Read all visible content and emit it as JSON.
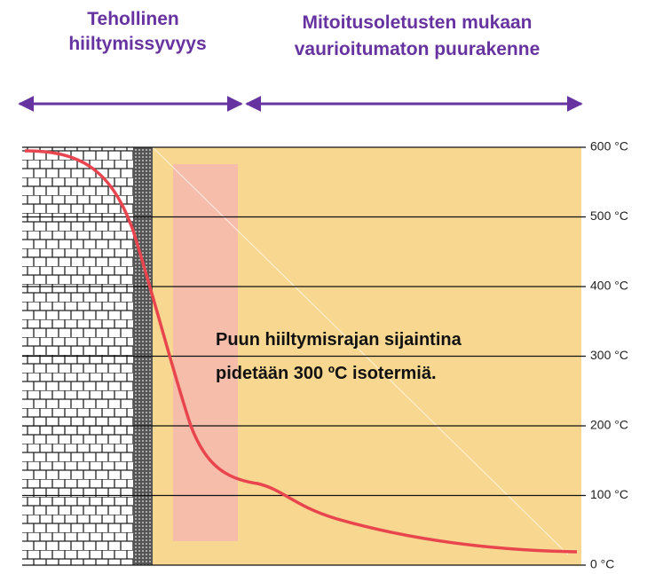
{
  "headings": [
    {
      "lines": [
        "Tehollinen",
        "hiiltymissyvyys"
      ]
    },
    {
      "lines": [
        "Mitoitusoletusten mukaan",
        "vaurioitumaton puurakenne"
      ]
    }
  ],
  "annotation": {
    "lines": [
      "Puun hiiltymisrajan sijaintina",
      "pidetään 300 ºC isotermiä."
    ]
  },
  "scale_labels": [
    "600 °C",
    "500 °C",
    "400 °C",
    "300 °C",
    "200 °C",
    "100 °C",
    "0 °C"
  ]
}
